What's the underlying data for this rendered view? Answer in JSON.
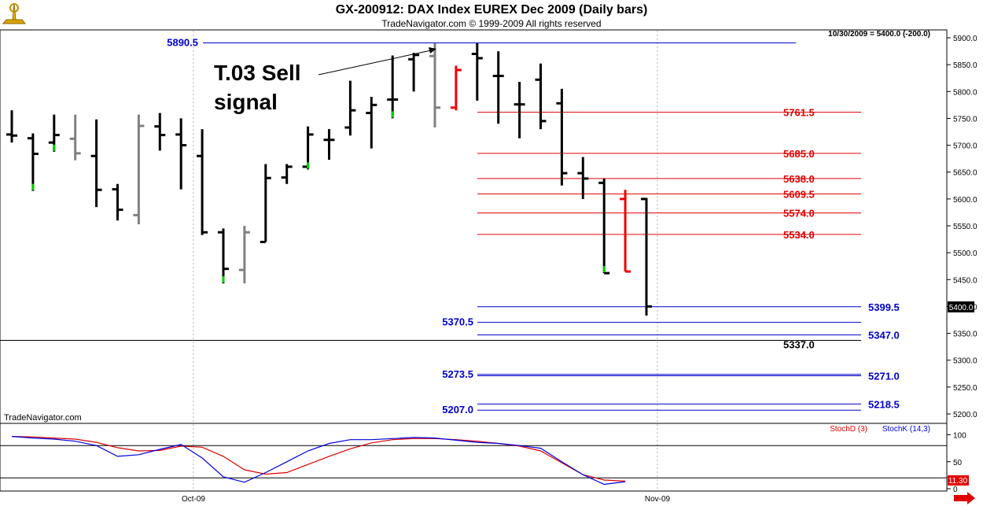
{
  "header": {
    "title": "GX-200912:  DAX Index EUREX Dec 2009  (Daily bars)",
    "copyright": "TradeNavigator.com © 1999-2009 All rights reserved",
    "info": "10/30/2009 = 5400.0 (-200.0)",
    "watermark": "TradeNavigator.com",
    "logo": "trade-navigator-logo-icon"
  },
  "annotation": {
    "line1": "T.03 Sell",
    "line2": "signal"
  },
  "price_label": "5400.0",
  "stoch_value_label": "11.30",
  "colors": {
    "level_red": "#e00000",
    "level_blue": "#0000cc",
    "stoch_k": "#0000dd",
    "stoch_d": "#dd0000",
    "bar_normal": "#000000",
    "bar_gray": "#808080",
    "bar_red": "#ee0000",
    "bar_green": "#00cc00"
  },
  "chart_data": [
    {
      "type": "ohlc",
      "title": "GX-200912:  DAX Index EUREX Dec 2009  (Daily bars)",
      "ylim": [
        5180,
        5920
      ],
      "y_ticks": [
        5200,
        5250,
        5300,
        5350,
        5400,
        5450,
        5500,
        5550,
        5600,
        5650,
        5700,
        5750,
        5800,
        5850,
        5900
      ],
      "x_ticks": [
        {
          "index": 9,
          "label": "Oct-09"
        },
        {
          "index": 31,
          "label": "Nov-09"
        }
      ],
      "bars": [
        {
          "o": 5720,
          "h": 5765,
          "l": 5705,
          "c": 5718,
          "color": "black"
        },
        {
          "o": 5713,
          "h": 5722,
          "l": 5615,
          "c": 5684,
          "color": "black",
          "green_tick": true
        },
        {
          "o": 5705,
          "h": 5757,
          "l": 5688,
          "c": 5719,
          "color": "black",
          "green_tick": true
        },
        {
          "o": 5712,
          "h": 5757,
          "l": 5672,
          "c": 5685,
          "color": "gray"
        },
        {
          "o": 5680,
          "h": 5748,
          "l": 5585,
          "c": 5617,
          "color": "black"
        },
        {
          "o": 5618,
          "h": 5628,
          "l": 5560,
          "c": 5580,
          "color": "black"
        },
        {
          "o": 5570,
          "h": 5757,
          "l": 5553,
          "c": 5736,
          "color": "gray"
        },
        {
          "o": 5735,
          "h": 5760,
          "l": 5690,
          "c": 5719,
          "color": "black"
        },
        {
          "o": 5720,
          "h": 5750,
          "l": 5618,
          "c": 5700,
          "color": "black"
        },
        {
          "o": 5680,
          "h": 5730,
          "l": 5533,
          "c": 5538,
          "color": "black"
        },
        {
          "o": 5538,
          "h": 5545,
          "l": 5443,
          "c": 5470,
          "color": "black",
          "green_tick": true
        },
        {
          "o": 5468,
          "h": 5550,
          "l": 5443,
          "c": 5538,
          "color": "gray"
        },
        {
          "o": 5520,
          "h": 5665,
          "l": 5520,
          "c": 5639,
          "color": "black"
        },
        {
          "o": 5640,
          "h": 5665,
          "l": 5628,
          "c": 5660,
          "color": "black"
        },
        {
          "o": 5660,
          "h": 5735,
          "l": 5655,
          "c": 5720,
          "color": "black",
          "green_tick": true
        },
        {
          "o": 5710,
          "h": 5730,
          "l": 5673,
          "c": 5710,
          "color": "black"
        },
        {
          "o": 5733,
          "h": 5820,
          "l": 5718,
          "c": 5765,
          "color": "black"
        },
        {
          "o": 5760,
          "h": 5790,
          "l": 5694,
          "c": 5775,
          "color": "black"
        },
        {
          "o": 5785,
          "h": 5867,
          "l": 5750,
          "c": 5785,
          "color": "black",
          "green_tick": true
        },
        {
          "o": 5860,
          "h": 5872,
          "l": 5800,
          "c": 5868,
          "color": "black"
        },
        {
          "o": 5866,
          "h": 5890,
          "l": 5733,
          "c": 5770,
          "color": "gray"
        },
        {
          "o": 5770,
          "h": 5848,
          "l": 5765,
          "c": 5840,
          "color": "red"
        },
        {
          "o": 5870,
          "h": 5890,
          "l": 5783,
          "c": 5862,
          "color": "black"
        },
        {
          "o": 5829,
          "h": 5875,
          "l": 5740,
          "c": 5829,
          "color": "black"
        },
        {
          "o": 5776,
          "h": 5818,
          "l": 5713,
          "c": 5776,
          "color": "black"
        },
        {
          "o": 5822,
          "h": 5852,
          "l": 5730,
          "c": 5745,
          "color": "black"
        },
        {
          "o": 5778,
          "h": 5805,
          "l": 5625,
          "c": 5648,
          "color": "black"
        },
        {
          "o": 5648,
          "h": 5678,
          "l": 5600,
          "c": 5638,
          "color": "black"
        },
        {
          "o": 5630,
          "h": 5638,
          "l": 5462,
          "c": 5462,
          "color": "black",
          "green_tick": true
        },
        {
          "o": 5600,
          "h": 5617,
          "l": 5465,
          "c": 5465,
          "color": "red"
        },
        {
          "o": 5600,
          "h": 5602,
          "l": 5383,
          "c": 5400,
          "color": "black"
        }
      ],
      "levels": [
        {
          "value": 5890.5,
          "label": "5890.5",
          "color": "blue",
          "side": "left"
        },
        {
          "value": 5761.5,
          "label": "5761.5",
          "color": "red",
          "side": "right"
        },
        {
          "value": 5685.0,
          "label": "5685.0",
          "color": "red",
          "side": "right"
        },
        {
          "value": 5638.0,
          "label": "5638.0",
          "color": "red",
          "side": "right"
        },
        {
          "value": 5609.5,
          "label": "5609.5",
          "color": "red",
          "side": "right"
        },
        {
          "value": 5574.0,
          "label": "5574.0",
          "color": "red",
          "side": "right"
        },
        {
          "value": 5534.0,
          "label": "5534.0",
          "color": "red",
          "side": "right"
        },
        {
          "value": 5399.5,
          "label": "5399.5",
          "color": "blue",
          "side": "right"
        },
        {
          "value": 5370.5,
          "label": "5370.5",
          "color": "blue",
          "side": "left"
        },
        {
          "value": 5347.0,
          "label": "5347.0",
          "color": "blue",
          "side": "right"
        },
        {
          "value": 5337.0,
          "label": "5337.0",
          "color": "black",
          "side": "right"
        },
        {
          "value": 5273.5,
          "label": "5273.5",
          "color": "blue",
          "side": "left"
        },
        {
          "value": 5271.0,
          "label": "5271.0",
          "color": "blue",
          "side": "right"
        },
        {
          "value": 5218.5,
          "label": "5218.5",
          "color": "blue",
          "side": "right"
        },
        {
          "value": 5207.0,
          "label": "5207.0",
          "color": "blue",
          "side": "left"
        }
      ],
      "last_price": 5400.0
    },
    {
      "type": "line",
      "title": "",
      "ylim": [
        0,
        115
      ],
      "y_ticks": [
        0,
        50,
        100
      ],
      "ref_lines": [
        20,
        80
      ],
      "series": [
        {
          "name": "StochD (3)",
          "color": "red",
          "values": [
            97,
            96,
            94,
            92,
            86,
            76,
            70,
            71,
            79,
            77,
            60,
            35,
            27,
            30,
            45,
            60,
            74,
            85,
            91,
            93,
            93,
            91,
            88,
            84,
            79,
            70,
            48,
            26,
            16,
            14
          ]
        },
        {
          "name": "StochK (14,3)",
          "color": "blue",
          "values": [
            97,
            94,
            92,
            88,
            80,
            60,
            63,
            73,
            82,
            57,
            22,
            12,
            30,
            50,
            70,
            84,
            91,
            91,
            93,
            95,
            94,
            90,
            86,
            84,
            80,
            75,
            50,
            26,
            8,
            13
          ]
        }
      ],
      "last_value_label": "11.30"
    }
  ]
}
